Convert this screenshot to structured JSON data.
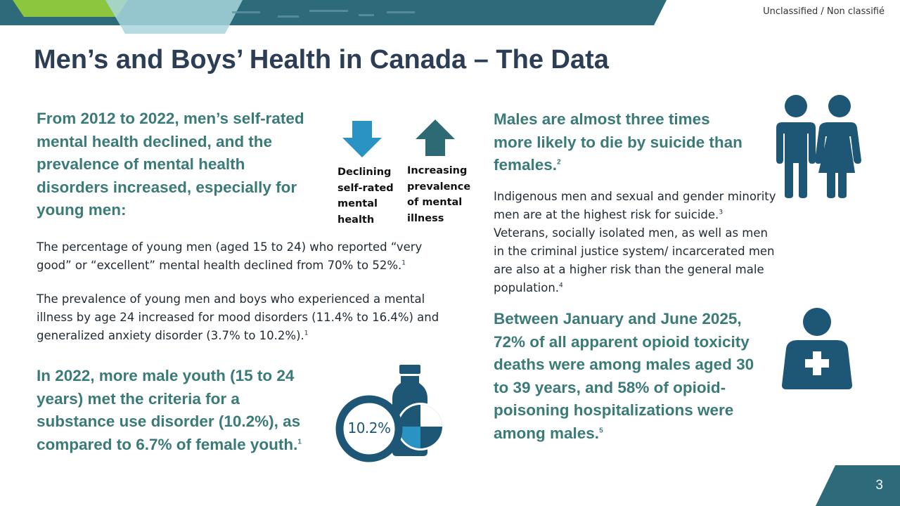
{
  "header": {
    "classification": "Unclassified / Non classifié",
    "title": "Men’s and Boys’ Health in Canada – The Data"
  },
  "left": {
    "headline1": "From 2012 to 2022, men’s self-rated mental health declined, and the prevalence of mental health disorders increased, especially for young men:",
    "arrow_down_label": "Declining self-rated mental health",
    "arrow_up_label": "Increasing prevalence of mental illness",
    "para1": "The percentage of young men (aged 15 to 24) who reported “very good” or “excellent” mental health declined from 70% to 52%.",
    "para1_ref": "1",
    "para2": "The prevalence of young men and boys who experienced a mental illness by age 24 increased for mood disorders (11.4% to 16.4%) and generalized anxiety disorder (3.7% to 10.2%).",
    "para2_ref": "1",
    "headline2": "In 2022, more male youth (15 to 24 years) met the criteria for a substance use disorder (10.2%), as compared to 6.7% of female youth.",
    "headline2_ref": "1",
    "ring_value": "10.2%",
    "ring_fraction": 0.102
  },
  "right": {
    "headline1": "Males are almost three times more likely to die by suicide than females.",
    "headline1_ref": "2",
    "para_a": "Indigenous men and sexual and gender minority men are at the highest risk for suicide.",
    "para_a_ref": "3",
    "para_b": " Veterans, socially isolated men, as well as men in the criminal justice system/ incarcerated men are also at a higher risk than the general male population.",
    "para_b_ref": "4",
    "headline2": "Between January and June 2025, 72% of all apparent opioid toxicity deaths were among males aged 30 to 39 years, and 58% of opioid-poisoning hospitalizations were among males.",
    "headline2_ref": "5"
  },
  "footer": {
    "page_number": "3"
  },
  "colors": {
    "dark_teal": "#2d6a7a",
    "navy_icon": "#1e5775",
    "headline": "#3a7a78",
    "title": "#2c3e55",
    "arrow_down": "#2a93c4",
    "arrow_up": "#2e6a74",
    "green_accent": "#8cc63f"
  },
  "icons": [
    "arrow-down-icon",
    "arrow-up-icon",
    "bottle-icon",
    "pie-icon",
    "man-woman-icon",
    "medical-person-icon"
  ]
}
